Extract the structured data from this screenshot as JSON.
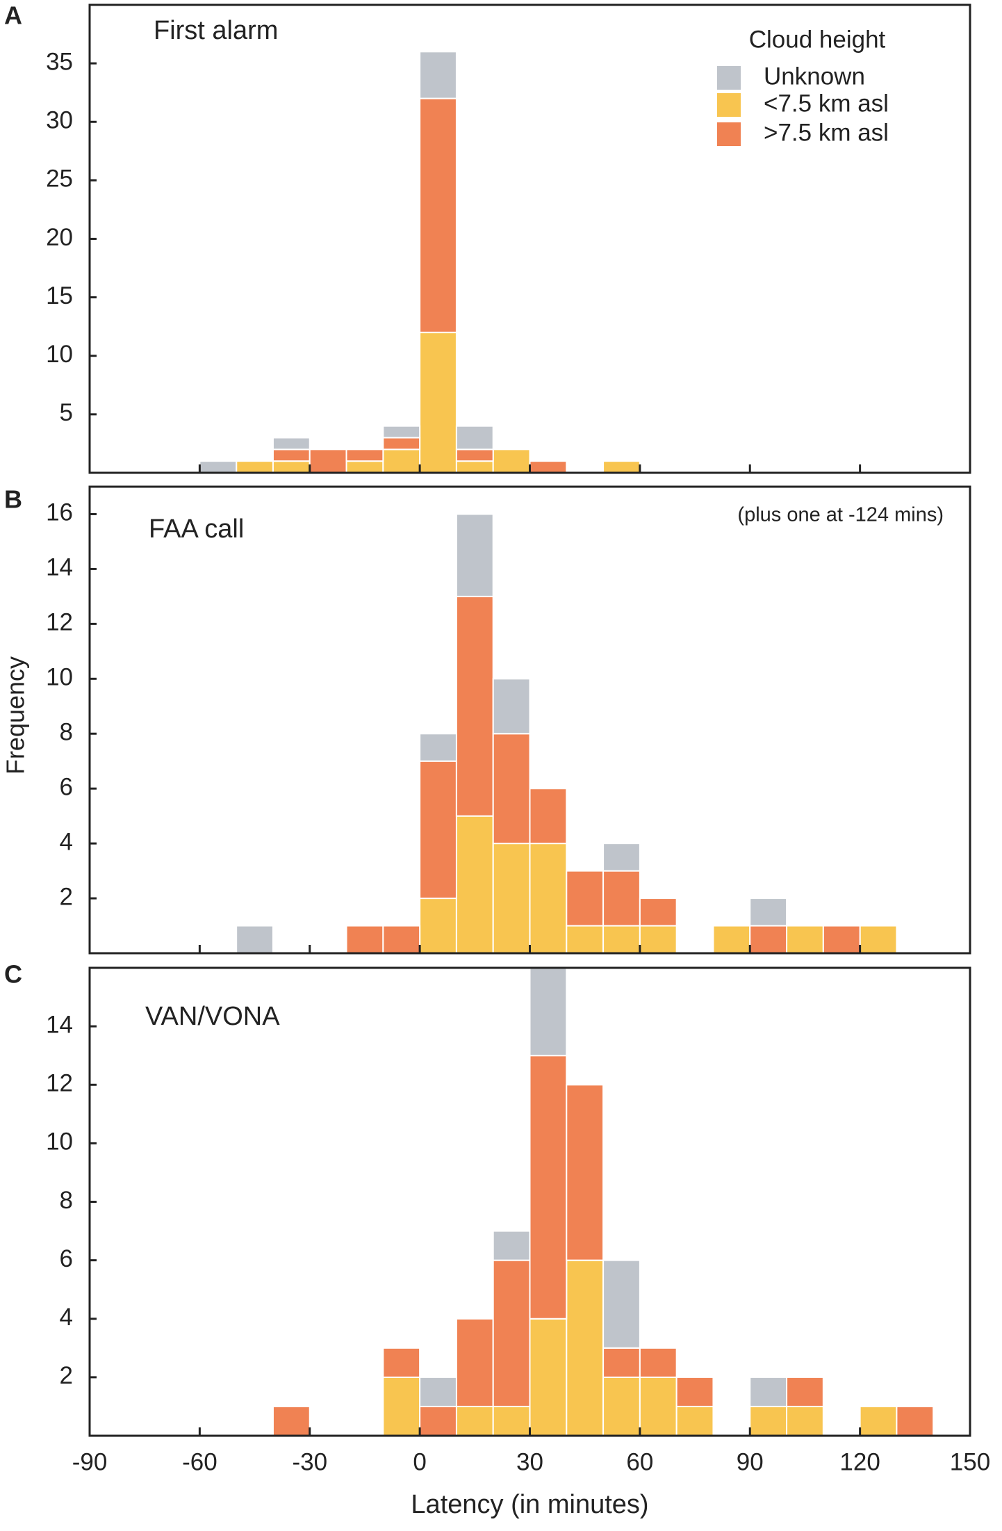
{
  "chart_data": [
    {
      "type": "histogram",
      "panel": "A",
      "title": "First alarm",
      "bins": [
        -90,
        -80,
        -70,
        -60,
        -50,
        -40,
        -30,
        -20,
        -10,
        0,
        10,
        20,
        30,
        40,
        50,
        60,
        70,
        80,
        90,
        100,
        110,
        120,
        130,
        140,
        150
      ],
      "legend_title": "Cloud height",
      "legend": "upper right",
      "series": [
        {
          "name": "<7.5 km asl",
          "color": "#f8c550",
          "values": [
            0,
            0,
            0,
            0,
            1,
            1,
            0,
            1,
            2,
            12,
            1,
            2,
            0,
            0,
            1,
            0,
            0,
            0,
            0,
            0,
            0,
            0,
            0,
            0
          ]
        },
        {
          "name": ">7.5 km asl",
          "color": "#f08253",
          "values": [
            0,
            0,
            0,
            0,
            0,
            1,
            2,
            1,
            1,
            20,
            1,
            0,
            1,
            0,
            0,
            0,
            0,
            0,
            0,
            0,
            0,
            0,
            0,
            0
          ]
        },
        {
          "name": "Unknown",
          "color": "#bfc4cb",
          "values": [
            0,
            0,
            0,
            1,
            0,
            1,
            0,
            0,
            1,
            4,
            2,
            0,
            0,
            0,
            0,
            0,
            0,
            0,
            0,
            0,
            0,
            0,
            0,
            0
          ]
        }
      ],
      "xlim": [
        -90,
        150
      ],
      "xticks": [
        -60,
        -30,
        0,
        30,
        60,
        90,
        120
      ],
      "xtick_labels": false,
      "ylim": [
        0,
        40
      ],
      "yticks": [
        5,
        10,
        15,
        20,
        25,
        30,
        35
      ]
    },
    {
      "type": "histogram",
      "panel": "B",
      "title": "FAA call",
      "annotation": "(plus one at -124 mins)",
      "ylabel": "Frequency",
      "bins": [
        -90,
        -80,
        -70,
        -60,
        -50,
        -40,
        -30,
        -20,
        -10,
        0,
        10,
        20,
        30,
        40,
        50,
        60,
        70,
        80,
        90,
        100,
        110,
        120,
        130,
        140,
        150
      ],
      "series": [
        {
          "color": "#f8c550",
          "values": [
            0,
            0,
            0,
            0,
            0,
            0,
            0,
            0,
            0,
            2,
            5,
            4,
            4,
            1,
            1,
            1,
            0,
            1,
            0,
            1,
            0,
            1,
            0,
            0
          ]
        },
        {
          "color": "#f08253",
          "values": [
            0,
            0,
            0,
            0,
            0,
            0,
            0,
            1,
            1,
            5,
            8,
            4,
            2,
            2,
            2,
            1,
            0,
            0,
            1,
            0,
            1,
            0,
            0,
            0
          ]
        },
        {
          "color": "#bfc4cb",
          "values": [
            0,
            0,
            0,
            0,
            1,
            0,
            0,
            0,
            0,
            1,
            3,
            2,
            0,
            0,
            1,
            0,
            0,
            0,
            1,
            0,
            0,
            0,
            0,
            0
          ]
        }
      ],
      "xlim": [
        -90,
        150
      ],
      "xticks": [
        -60,
        -30,
        0,
        30,
        60,
        90,
        120
      ],
      "xtick_labels": false,
      "ylim": [
        0,
        17
      ],
      "yticks": [
        2,
        4,
        6,
        8,
        10,
        12,
        14,
        16
      ]
    },
    {
      "type": "histogram",
      "panel": "C",
      "title": "VAN/VONA",
      "xlabel": "Latency (in minutes)",
      "bins": [
        -90,
        -80,
        -70,
        -60,
        -50,
        -40,
        -30,
        -20,
        -10,
        0,
        10,
        20,
        30,
        40,
        50,
        60,
        70,
        80,
        90,
        100,
        110,
        120,
        130,
        140,
        150
      ],
      "series": [
        {
          "color": "#f8c550",
          "values": [
            0,
            0,
            0,
            0,
            0,
            0,
            0,
            0,
            2,
            0,
            1,
            1,
            4,
            6,
            2,
            2,
            1,
            0,
            1,
            1,
            0,
            1,
            0,
            0
          ]
        },
        {
          "color": "#f08253",
          "values": [
            0,
            0,
            0,
            0,
            0,
            1,
            0,
            0,
            1,
            1,
            3,
            5,
            9,
            6,
            1,
            1,
            1,
            0,
            0,
            1,
            0,
            0,
            1,
            0
          ]
        },
        {
          "color": "#bfc4cb",
          "values": [
            0,
            0,
            0,
            0,
            0,
            0,
            0,
            0,
            0,
            1,
            0,
            1,
            3,
            0,
            3,
            0,
            0,
            0,
            1,
            0,
            0,
            0,
            0,
            0
          ]
        }
      ],
      "xlim": [
        -90,
        150
      ],
      "xticks": [
        -90,
        -60,
        -30,
        0,
        30,
        60,
        90,
        120,
        150
      ],
      "xtick_labels": true,
      "ylim": [
        0,
        16
      ],
      "yticks": [
        2,
        4,
        6,
        8,
        10,
        12,
        14
      ]
    }
  ]
}
